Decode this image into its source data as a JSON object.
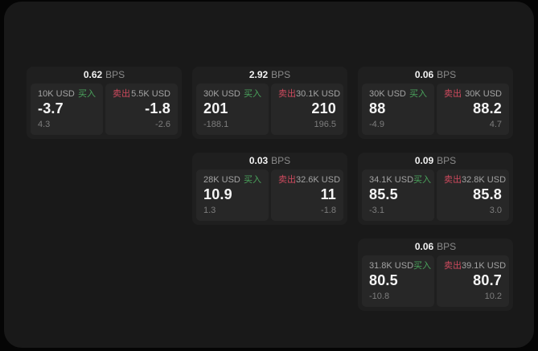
{
  "labels": {
    "bps_unit": "BPS",
    "buy": "买入",
    "sell": "卖出"
  },
  "colors": {
    "buy_green": "#4aa35c",
    "sell_red": "#ce4a5e",
    "page_bg": "#191919",
    "card_bg": "#1f1f1f",
    "panel_bg": "#272727"
  },
  "cards": [
    {
      "bps": "0.62",
      "buy": {
        "amount": "10K USD",
        "price": "-3.7",
        "sub": "4.3"
      },
      "sell": {
        "amount": "5.5K USD",
        "price": "-1.8",
        "sub": "-2.6"
      }
    },
    {
      "bps": "2.92",
      "buy": {
        "amount": "30K USD",
        "price": "201",
        "sub": "-188.1"
      },
      "sell": {
        "amount": "30.1K USD",
        "price": "210",
        "sub": "196.5"
      }
    },
    {
      "bps": "0.06",
      "buy": {
        "amount": "30K USD",
        "price": "88",
        "sub": "-4.9"
      },
      "sell": {
        "amount": "30K USD",
        "price": "88.2",
        "sub": "4.7"
      }
    },
    {
      "bps": "0.03",
      "buy": {
        "amount": "28K USD",
        "price": "10.9",
        "sub": "1.3"
      },
      "sell": {
        "amount": "32.6K USD",
        "price": "11",
        "sub": "-1.8"
      }
    },
    {
      "bps": "0.09",
      "buy": {
        "amount": "34.1K USD",
        "price": "85.5",
        "sub": "-3.1"
      },
      "sell": {
        "amount": "32.8K USD",
        "price": "85.8",
        "sub": "3.0"
      }
    },
    {
      "bps": "0.06",
      "buy": {
        "amount": "31.8K USD",
        "price": "80.5",
        "sub": "-10.8"
      },
      "sell": {
        "amount": "39.1K USD",
        "price": "80.7",
        "sub": "10.2"
      }
    }
  ]
}
